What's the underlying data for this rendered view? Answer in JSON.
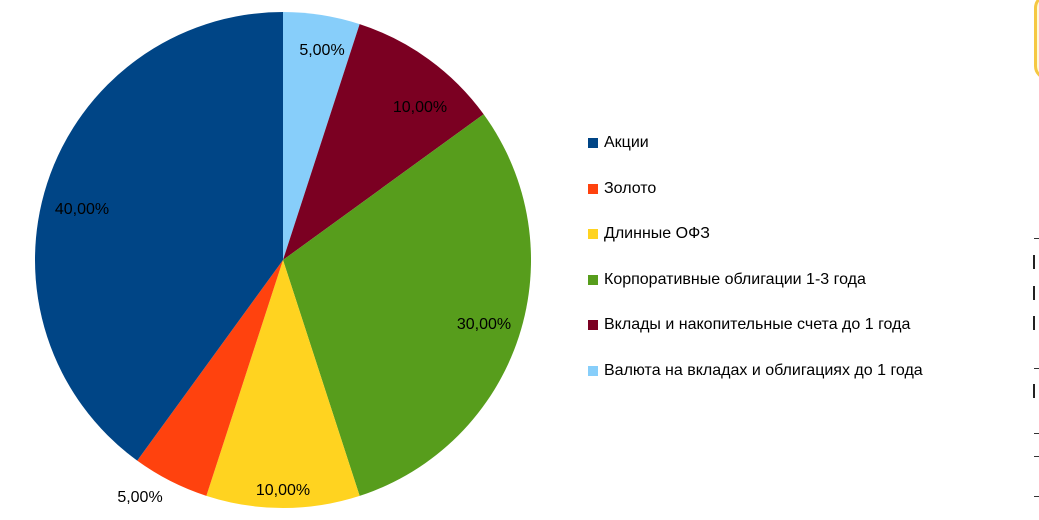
{
  "chart_data": {
    "type": "pie",
    "title": "",
    "start_angle_deg": 0,
    "direction": "clockwise",
    "legend_placement": "right",
    "slices": [
      {
        "label": "Валюта на вкладах и облигациях до 1 года",
        "value": 5,
        "display": "5,00%",
        "color": "#87CEFA"
      },
      {
        "label": "Вклады и накопительные счета до 1 года",
        "value": 10,
        "display": "10,00%",
        "color": "#7B0022"
      },
      {
        "label": "Корпоративные облигации 1-3 года",
        "value": 30,
        "display": "30,00%",
        "color": "#579D1C"
      },
      {
        "label": "Длинные ОФЗ",
        "value": 10,
        "display": "10,00%",
        "color": "#FFD320"
      },
      {
        "label": "Золото",
        "value": 5,
        "display": "5,00%",
        "color": "#FF420E"
      },
      {
        "label": "Акции",
        "value": 40,
        "display": "40,00%",
        "color": "#004586"
      }
    ],
    "legend": [
      {
        "label": "Акции",
        "color": "#004586"
      },
      {
        "label": "Золото",
        "color": "#FF420E"
      },
      {
        "label": "Длинные ОФЗ",
        "color": "#FFD320"
      },
      {
        "label": "Корпоративные облигации 1-3 года",
        "color": "#579D1C"
      },
      {
        "label": "Вклады и накопительные счета до 1 года",
        "color": "#7B0022"
      },
      {
        "label": "Валюта на вкладах и облигациях до 1 года",
        "color": "#87CEFA"
      }
    ]
  }
}
